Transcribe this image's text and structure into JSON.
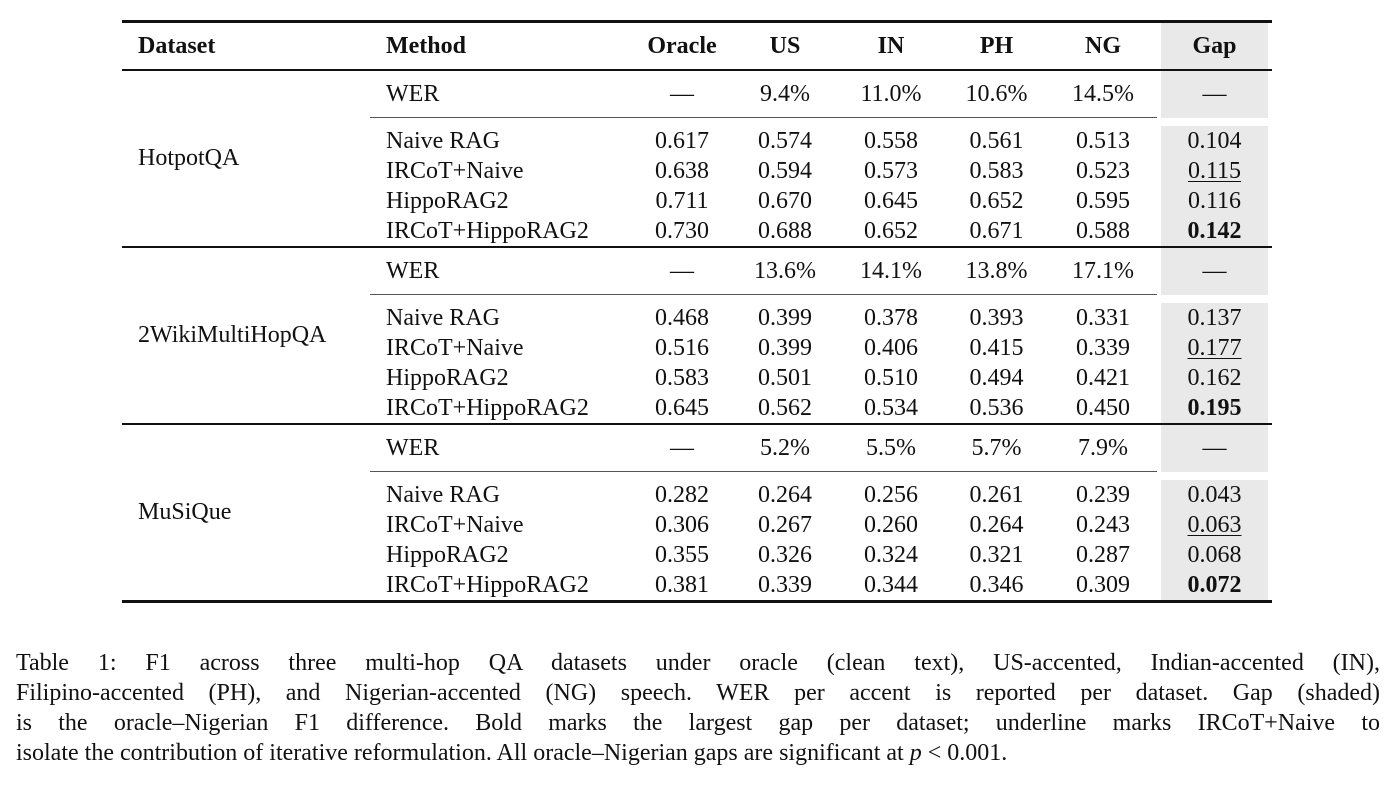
{
  "table": {
    "headers": [
      "Dataset",
      "Method",
      "Oracle",
      "US",
      "IN",
      "PH",
      "NG",
      "Gap"
    ],
    "groups": [
      {
        "dataset": "HotpotQA",
        "wer": {
          "method": "WER",
          "oracle": "—",
          "us": "9.4%",
          "in": "11.0%",
          "ph": "10.6%",
          "ng": "14.5%",
          "gap": "—"
        },
        "rows": [
          {
            "method": "Naive RAG",
            "oracle": "0.617",
            "us": "0.574",
            "in": "0.558",
            "ph": "0.561",
            "ng": "0.513",
            "gap": "0.104"
          },
          {
            "method": "IRCoT+Naive",
            "oracle": "0.638",
            "us": "0.594",
            "in": "0.573",
            "ph": "0.583",
            "ng": "0.523",
            "gap": "0.115"
          },
          {
            "method": "HippoRAG2",
            "oracle": "0.711",
            "us": "0.670",
            "in": "0.645",
            "ph": "0.652",
            "ng": "0.595",
            "gap": "0.116"
          },
          {
            "method": "IRCoT+HippoRAG2",
            "oracle": "0.730",
            "us": "0.688",
            "in": "0.652",
            "ph": "0.671",
            "ng": "0.588",
            "gap": "0.142"
          }
        ]
      },
      {
        "dataset": "2WikiMultiHopQA",
        "wer": {
          "method": "WER",
          "oracle": "—",
          "us": "13.6%",
          "in": "14.1%",
          "ph": "13.8%",
          "ng": "17.1%",
          "gap": "—"
        },
        "rows": [
          {
            "method": "Naive RAG",
            "oracle": "0.468",
            "us": "0.399",
            "in": "0.378",
            "ph": "0.393",
            "ng": "0.331",
            "gap": "0.137"
          },
          {
            "method": "IRCoT+Naive",
            "oracle": "0.516",
            "us": "0.399",
            "in": "0.406",
            "ph": "0.415",
            "ng": "0.339",
            "gap": "0.177"
          },
          {
            "method": "HippoRAG2",
            "oracle": "0.583",
            "us": "0.501",
            "in": "0.510",
            "ph": "0.494",
            "ng": "0.421",
            "gap": "0.162"
          },
          {
            "method": "IRCoT+HippoRAG2",
            "oracle": "0.645",
            "us": "0.562",
            "in": "0.534",
            "ph": "0.536",
            "ng": "0.450",
            "gap": "0.195"
          }
        ]
      },
      {
        "dataset": "MuSiQue",
        "wer": {
          "method": "WER",
          "oracle": "—",
          "us": "5.2%",
          "in": "5.5%",
          "ph": "5.7%",
          "ng": "7.9%",
          "gap": "—"
        },
        "rows": [
          {
            "method": "Naive RAG",
            "oracle": "0.282",
            "us": "0.264",
            "in": "0.256",
            "ph": "0.261",
            "ng": "0.239",
            "gap": "0.043"
          },
          {
            "method": "IRCoT+Naive",
            "oracle": "0.306",
            "us": "0.267",
            "in": "0.260",
            "ph": "0.264",
            "ng": "0.243",
            "gap": "0.063"
          },
          {
            "method": "HippoRAG2",
            "oracle": "0.355",
            "us": "0.326",
            "in": "0.324",
            "ph": "0.321",
            "ng": "0.287",
            "gap": "0.068"
          },
          {
            "method": "IRCoT+HippoRAG2",
            "oracle": "0.381",
            "us": "0.339",
            "in": "0.344",
            "ph": "0.346",
            "ng": "0.309",
            "gap": "0.072"
          }
        ]
      }
    ]
  },
  "caption": {
    "line1": "Table 1: F1 across three multi-hop QA datasets under oracle (clean text), US-accented, Indian-accented (IN),",
    "line2": "Filipino-accented (PH), and Nigerian-accented (NG) speech. WER per accent is reported per dataset. Gap (shaded)",
    "line3": "is the oracle–Nigerian F1 difference. Bold marks the largest gap per dataset; underline marks IRCoT+Naive to",
    "line4a": "isolate the contribution of iterative reformulation. All oracle–Nigerian gaps are significant at ",
    "line4b": "p",
    "line4c": " < 0.001."
  }
}
